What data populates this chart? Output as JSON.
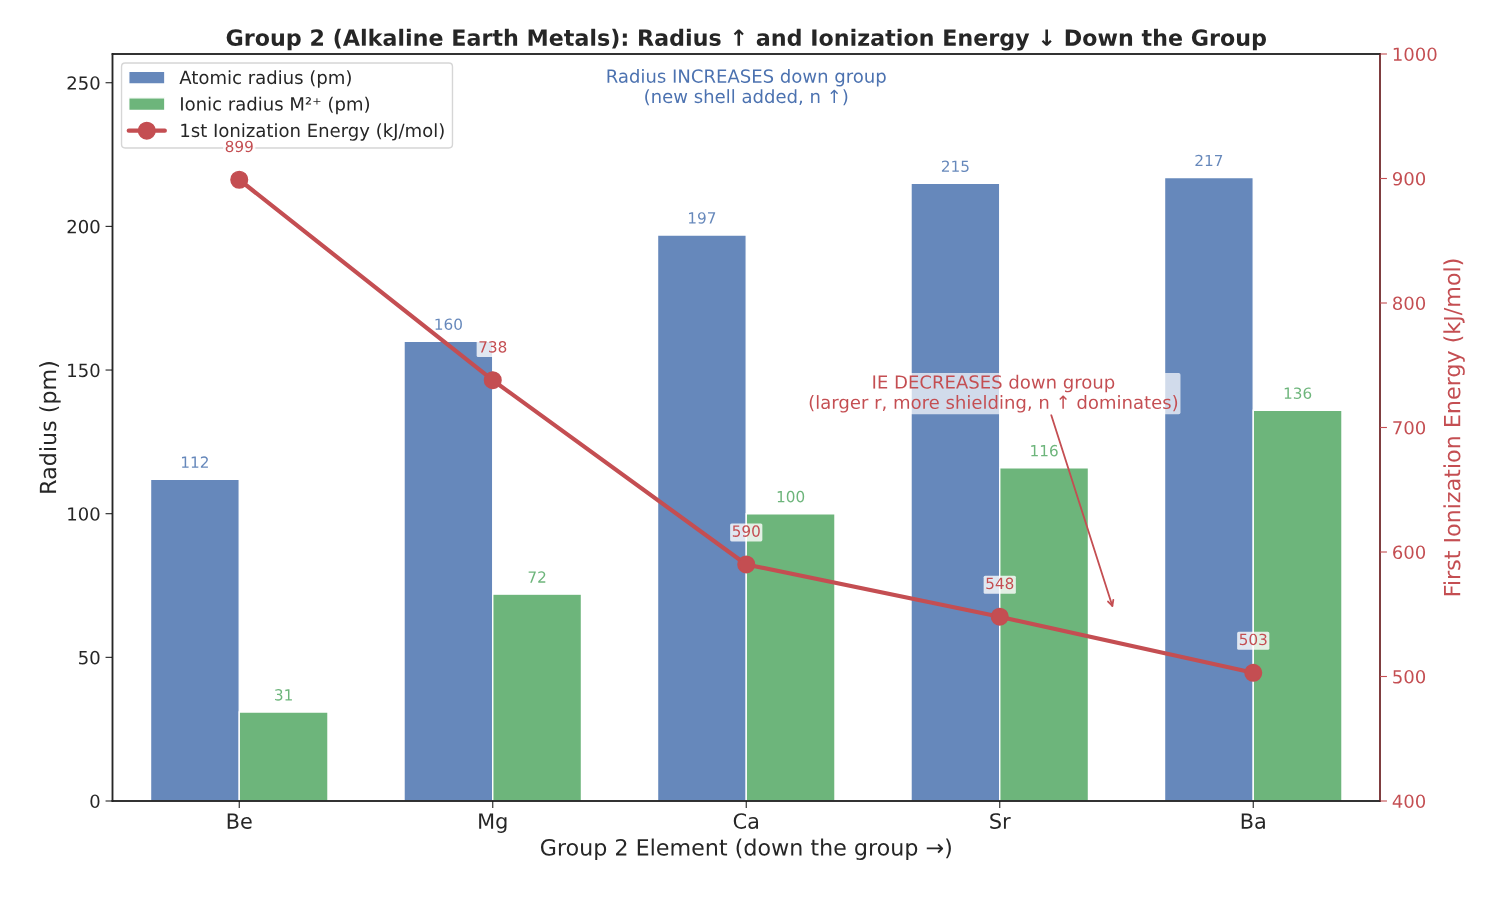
{
  "chart_data": {
    "type": "bar",
    "title": "Group 2 (Alkaline Earth Metals): Radius ↑ and Ionization Energy ↓ Down the Group",
    "xlabel": "Group 2 Element (down the group →)",
    "ylabel": "Radius (pm)",
    "y2label": "First Ionization Energy (kJ/mol)",
    "categories": [
      "Be",
      "Mg",
      "Ca",
      "Sr",
      "Ba"
    ],
    "series": [
      {
        "name": "Atomic radius (pm)",
        "color": "#6688bb",
        "values": [
          112,
          160,
          197,
          215,
          217
        ]
      },
      {
        "name": "Ionic radius M²⁺ (pm)",
        "color": "#6db57b",
        "values": [
          31,
          72,
          100,
          116,
          136
        ]
      },
      {
        "name": "1st Ionization Energy (kJ/mol)",
        "type": "line",
        "axis": "y2",
        "color": "#c44e52",
        "marker": "circle",
        "values": [
          899,
          738,
          590,
          548,
          503
        ]
      }
    ],
    "ylim": [
      0,
      260
    ],
    "yticks": [
      0,
      50,
      100,
      150,
      200,
      250
    ],
    "y2lim": [
      400,
      1000
    ],
    "y2ticks": [
      400,
      500,
      600,
      700,
      800,
      900,
      1000
    ],
    "annotations": [
      "Radius INCREASES down group\n(new shell added, n ↑)",
      "IE DECREASES down group\n(larger r, more shielding, n ↑ dominates)"
    ],
    "data_labels": true,
    "legend": "top left",
    "grid": false
  }
}
